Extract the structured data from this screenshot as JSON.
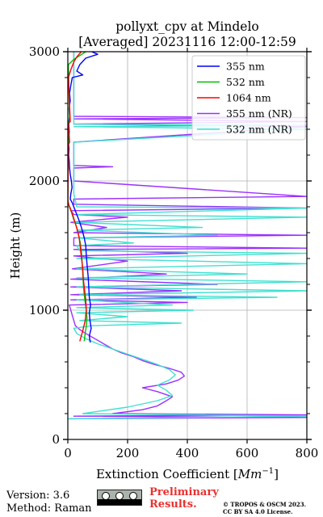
{
  "chart_data": {
    "type": "line",
    "title_line1": "pollyxt_cpv at Mindelo",
    "title_line2": "[Averaged] 20231116 12:00-12:59",
    "xlabel": "Extinction Coefficient [$Mm^{-1}$]",
    "xlabel_main": "Extinction Coefficient [",
    "xlabel_base": "Mm",
    "xlabel_sup": "−1",
    "xlabel_close": "]",
    "ylabel": "Height (m)",
    "xlim": [
      0,
      800
    ],
    "ylim": [
      0,
      3000
    ],
    "xticks": [
      0,
      200,
      400,
      600,
      800
    ],
    "yticks": [
      0,
      1000,
      2000,
      3000
    ],
    "xtick_labels": [
      "0",
      "200",
      "400",
      "600",
      "800"
    ],
    "ytick_labels": [
      "0",
      "1000",
      "2000",
      "3000"
    ],
    "grid": true,
    "legend_position": "top-right",
    "series": [
      {
        "name": "355 nm",
        "color": "#0000ff",
        "points": [
          [
            75,
            750
          ],
          [
            72,
            800
          ],
          [
            78,
            860
          ],
          [
            74,
            920
          ],
          [
            72,
            980
          ],
          [
            76,
            1040
          ],
          [
            72,
            1100
          ],
          [
            70,
            1180
          ],
          [
            68,
            1260
          ],
          [
            65,
            1340
          ],
          [
            62,
            1420
          ],
          [
            60,
            1500
          ],
          [
            55,
            1560
          ],
          [
            48,
            1620
          ],
          [
            40,
            1680
          ],
          [
            30,
            1740
          ],
          [
            20,
            1800
          ],
          [
            15,
            1830
          ],
          [
            8,
            1860
          ],
          [
            10,
            1900
          ],
          [
            14,
            1950
          ],
          [
            12,
            2000
          ],
          [
            8,
            2050
          ],
          [
            6,
            2100
          ],
          [
            5,
            2150
          ],
          [
            3,
            2200
          ],
          [
            4,
            2250
          ],
          [
            2,
            2300
          ],
          [
            5,
            2380
          ],
          [
            3,
            2450
          ],
          [
            6,
            2500
          ],
          [
            4,
            2560
          ],
          [
            8,
            2620
          ],
          [
            6,
            2680
          ],
          [
            10,
            2740
          ],
          [
            15,
            2800
          ],
          [
            50,
            2820
          ],
          [
            30,
            2850
          ],
          [
            40,
            2900
          ],
          [
            60,
            2950
          ],
          [
            100,
            2980
          ],
          [
            80,
            3000
          ]
        ]
      },
      {
        "name": "532 nm",
        "color": "#00bb00",
        "points": [
          [
            55,
            760
          ],
          [
            58,
            820
          ],
          [
            62,
            880
          ],
          [
            64,
            940
          ],
          [
            62,
            1000
          ],
          [
            58,
            1060
          ],
          [
            55,
            1120
          ],
          [
            52,
            1200
          ],
          [
            50,
            1280
          ],
          [
            48,
            1360
          ],
          [
            46,
            1440
          ],
          [
            42,
            1520
          ],
          [
            36,
            1580
          ],
          [
            30,
            1640
          ],
          [
            20,
            1700
          ],
          [
            12,
            1760
          ],
          [
            5,
            1800
          ],
          [
            0,
            1850
          ],
          [
            2,
            2300
          ],
          [
            4,
            2320
          ],
          [
            2,
            2450
          ],
          [
            6,
            2460
          ],
          [
            2,
            2900
          ],
          [
            20,
            2940
          ],
          [
            40,
            2970
          ],
          [
            60,
            3000
          ]
        ]
      },
      {
        "name": "1064 nm",
        "color": "#ff0000",
        "points": [
          [
            40,
            760
          ],
          [
            50,
            840
          ],
          [
            58,
            920
          ],
          [
            62,
            1000
          ],
          [
            60,
            1080
          ],
          [
            56,
            1160
          ],
          [
            52,
            1240
          ],
          [
            50,
            1320
          ],
          [
            46,
            1400
          ],
          [
            42,
            1480
          ],
          [
            38,
            1560
          ],
          [
            32,
            1620
          ],
          [
            24,
            1680
          ],
          [
            16,
            1740
          ],
          [
            8,
            1790
          ],
          [
            2,
            1820
          ],
          [
            0,
            1850
          ],
          [
            2,
            2280
          ],
          [
            6,
            2300
          ],
          [
            2,
            2440
          ],
          [
            8,
            2460
          ],
          [
            2,
            2800
          ],
          [
            10,
            2860
          ],
          [
            20,
            2920
          ],
          [
            30,
            2960
          ],
          [
            45,
            3000
          ]
        ]
      },
      {
        "name": "355 nm (NR)",
        "color": "#9b30ff",
        "points": [
          [
            5,
            160
          ],
          [
            800,
            170
          ],
          [
            20,
            180
          ],
          [
            800,
            190
          ],
          [
            150,
            200
          ],
          [
            250,
            230
          ],
          [
            300,
            260
          ],
          [
            330,
            300
          ],
          [
            350,
            330
          ],
          [
            300,
            370
          ],
          [
            250,
            400
          ],
          [
            330,
            430
          ],
          [
            370,
            460
          ],
          [
            390,
            490
          ],
          [
            380,
            520
          ],
          [
            340,
            550
          ],
          [
            290,
            580
          ],
          [
            250,
            610
          ],
          [
            220,
            640
          ],
          [
            180,
            670
          ],
          [
            150,
            700
          ],
          [
            120,
            740
          ],
          [
            90,
            780
          ],
          [
            60,
            820
          ],
          [
            40,
            850
          ],
          [
            25,
            880
          ],
          [
            20,
            920
          ],
          [
            15,
            960
          ],
          [
            10,
            1000
          ],
          [
            5,
            1040
          ],
          [
            400,
            1060
          ],
          [
            10,
            1080
          ],
          [
            430,
            1100
          ],
          [
            10,
            1120
          ],
          [
            380,
            1150
          ],
          [
            10,
            1180
          ],
          [
            500,
            1200
          ],
          [
            10,
            1240
          ],
          [
            330,
            1280
          ],
          [
            15,
            1320
          ],
          [
            200,
            1380
          ],
          [
            20,
            1420
          ],
          [
            400,
            1440
          ],
          [
            20,
            1470
          ],
          [
            800,
            1480
          ],
          [
            20,
            1500
          ],
          [
            20,
            1540
          ],
          [
            20,
            1560
          ],
          [
            800,
            1580
          ],
          [
            20,
            1600
          ],
          [
            130,
            1640
          ],
          [
            10,
            1680
          ],
          [
            200,
            1720
          ],
          [
            20,
            1740
          ],
          [
            10,
            1770
          ],
          [
            800,
            1790
          ],
          [
            20,
            1820
          ],
          [
            20,
            1860
          ],
          [
            800,
            1880
          ],
          [
            20,
            2000
          ],
          [
            20,
            2100
          ],
          [
            150,
            2110
          ],
          [
            20,
            2120
          ],
          [
            20,
            2300
          ],
          [
            800,
            2420
          ],
          [
            20,
            2440
          ],
          [
            800,
            2460
          ],
          [
            20,
            2480
          ],
          [
            800,
            2490
          ],
          [
            20,
            2500
          ],
          [
            20,
            2600
          ],
          [
            20,
            3000
          ]
        ]
      },
      {
        "name": "532 nm (NR)",
        "color": "#40e0d0",
        "points": [
          [
            0,
            160
          ],
          [
            800,
            180
          ],
          [
            50,
            200
          ],
          [
            200,
            250
          ],
          [
            300,
            300
          ],
          [
            350,
            340
          ],
          [
            330,
            380
          ],
          [
            300,
            420
          ],
          [
            340,
            460
          ],
          [
            360,
            500
          ],
          [
            340,
            540
          ],
          [
            300,
            580
          ],
          [
            250,
            620
          ],
          [
            200,
            660
          ],
          [
            150,
            700
          ],
          [
            100,
            740
          ],
          [
            60,
            780
          ],
          [
            30,
            820
          ],
          [
            20,
            860
          ],
          [
            80,
            880
          ],
          [
            380,
            900
          ],
          [
            40,
            920
          ],
          [
            200,
            950
          ],
          [
            30,
            980
          ],
          [
            420,
            1000
          ],
          [
            30,
            1020
          ],
          [
            350,
            1040
          ],
          [
            30,
            1080
          ],
          [
            700,
            1100
          ],
          [
            40,
            1120
          ],
          [
            800,
            1150
          ],
          [
            30,
            1180
          ],
          [
            800,
            1220
          ],
          [
            30,
            1250
          ],
          [
            600,
            1280
          ],
          [
            30,
            1320
          ],
          [
            800,
            1360
          ],
          [
            30,
            1400
          ],
          [
            800,
            1440
          ],
          [
            40,
            1460
          ],
          [
            30,
            1500
          ],
          [
            220,
            1520
          ],
          [
            30,
            1560
          ],
          [
            500,
            1580
          ],
          [
            30,
            1620
          ],
          [
            450,
            1640
          ],
          [
            20,
            1680
          ],
          [
            800,
            1720
          ],
          [
            30,
            1740
          ],
          [
            800,
            1790
          ],
          [
            30,
            1800
          ],
          [
            20,
            1900
          ],
          [
            20,
            2100
          ],
          [
            20,
            2300
          ],
          [
            800,
            2400
          ],
          [
            20,
            2420
          ],
          [
            800,
            2430
          ],
          [
            20,
            2440
          ],
          [
            20,
            2600
          ],
          [
            20,
            3000
          ]
        ]
      }
    ]
  },
  "footer": {
    "version": "Version: 3.6",
    "method": "Method: Raman",
    "preliminary_line1": "Preliminary",
    "preliminary_line2": "Results.",
    "copyright_line1": "© TROPOS & OSCM 2023.",
    "copyright_line2": "CC BY SA 4.0 License.",
    "license_badge_icons": [
      "cc-icon",
      "by-icon",
      "sa-icon"
    ],
    "license_badge_text": "BY  SA"
  }
}
